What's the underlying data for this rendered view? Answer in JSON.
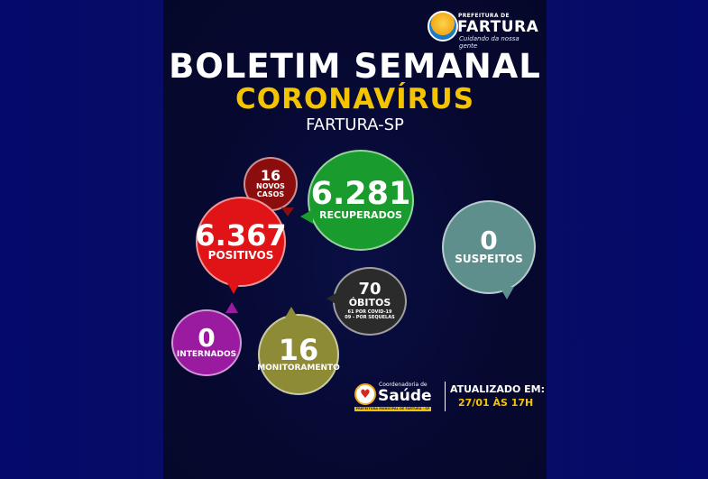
{
  "logo": {
    "small_text": "PREFEITURA DE",
    "name": "FARTURA",
    "tagline": "Cuidando da nossa gente"
  },
  "header": {
    "title": "BOLETIM SEMANAL",
    "subtitle": "CORONAVÍRUS",
    "city": "FARTURA-SP"
  },
  "stats": {
    "novos_casos": {
      "value": "16",
      "label": "NOVOS CASOS",
      "color": "#8c0d0d"
    },
    "recuperados": {
      "value": "6.281",
      "label": "RECUPERADOS",
      "color": "#1a9b2d"
    },
    "positivos": {
      "value": "6.367",
      "label": "POSITIVOS",
      "color": "#e01316"
    },
    "suspeitos": {
      "value": "0",
      "label": "SUSPEITOS",
      "color": "#5e8f8d"
    },
    "obitos": {
      "value": "70",
      "label": "ÓBITOS",
      "detail1": "61 POR COVID-19",
      "detail2": "09 - POR SEQUELAS",
      "color": "#2b2b2b"
    },
    "internados": {
      "value": "0",
      "label": "INTERNADOS",
      "color": "#9a1aa0"
    },
    "monitoramento": {
      "value": "16",
      "label": "MONITORAMENTO",
      "color": "#8d8b36"
    }
  },
  "footer": {
    "coordenadoria": "Coordenadoria de",
    "saude": "Saúde",
    "prefeitura_strip": "PREFEITURA MUNICIPAL DE FARTURA - SP",
    "updated_label": "ATUALIZADO EM:",
    "updated_value": "27/01 ÀS 17H"
  }
}
